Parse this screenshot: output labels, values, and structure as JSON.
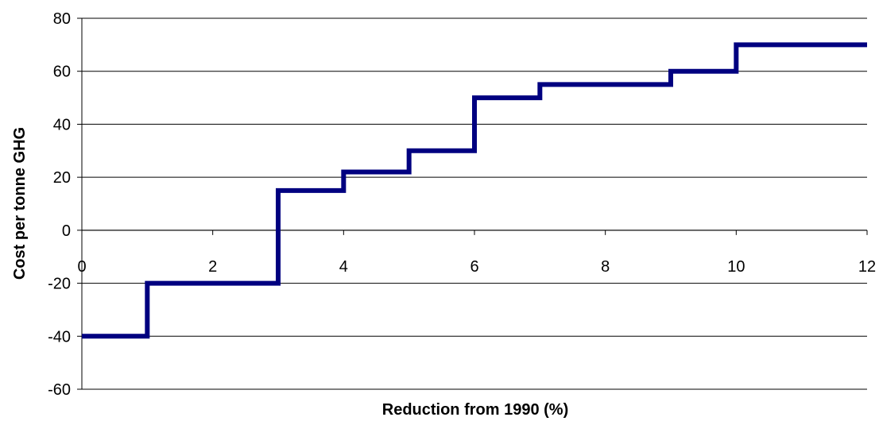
{
  "chart_data": {
    "type": "line",
    "step": "post",
    "title": "",
    "xlabel": "Reduction from 1990 (%)",
    "ylabel": "Cost per tonne GHG",
    "xlim": [
      0,
      12
    ],
    "ylim": [
      -60,
      80
    ],
    "x_ticks": [
      0,
      2,
      4,
      6,
      8,
      10,
      12
    ],
    "y_ticks": [
      -60,
      -40,
      -20,
      0,
      20,
      40,
      60,
      80
    ],
    "x_tick_labels": [
      "0",
      "2",
      "4",
      "6",
      "8",
      "10",
      "12"
    ],
    "y_tick_labels": [
      "-60",
      "-40",
      "-20",
      "0",
      "20",
      "40",
      "60",
      "80"
    ],
    "grid": "horizontal",
    "legend": "none",
    "series": [
      {
        "color": "#000080",
        "x": [
          0,
          1,
          3,
          4,
          5,
          6,
          7,
          9,
          10,
          12
        ],
        "values": [
          -40,
          -20,
          15,
          22,
          30,
          50,
          55,
          60,
          70,
          70
        ]
      }
    ]
  }
}
